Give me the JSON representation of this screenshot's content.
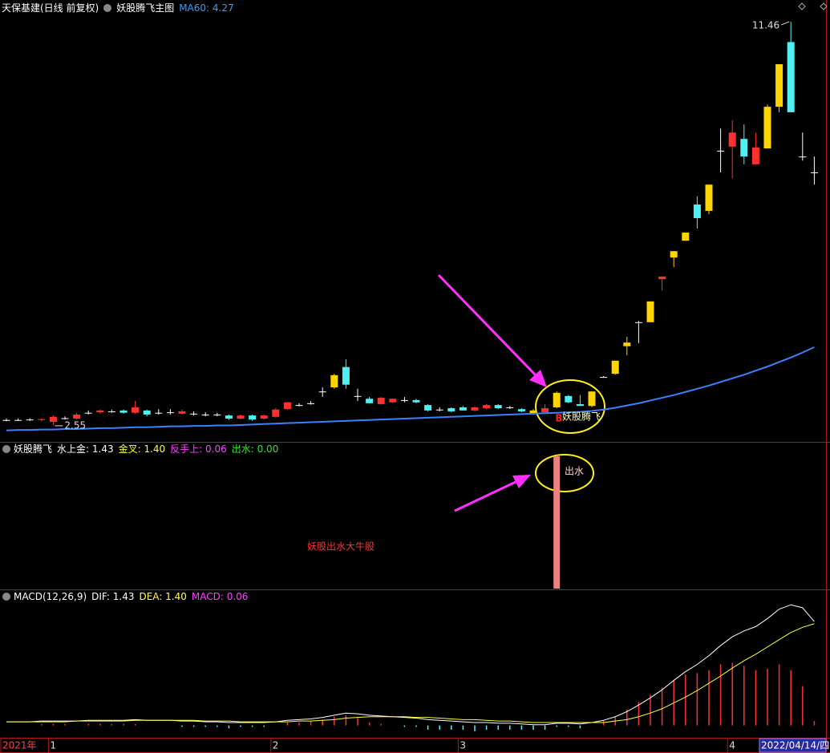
{
  "chart_data": [
    {
      "type": "candlestick",
      "title": "天保基建(日线 前复权)",
      "subtitle": "妖股腾飞主图",
      "legend": "MA60: 4.27",
      "cursor_date": "2022/04/14/四",
      "categories": [
        "2021年",
        null,
        null,
        null,
        "1",
        null,
        null,
        null,
        null,
        null,
        null,
        null,
        null,
        null,
        null,
        null,
        null,
        null,
        null,
        null,
        null,
        null,
        null,
        "2",
        null,
        null,
        null,
        null,
        null,
        null,
        null,
        null,
        null,
        null,
        null,
        null,
        null,
        null,
        null,
        "3",
        null,
        null,
        null,
        null,
        null,
        null,
        null,
        null,
        null,
        null,
        null,
        null,
        null,
        null,
        null,
        null,
        null,
        null,
        null,
        null,
        null,
        null,
        "4",
        null,
        null,
        null,
        null,
        null,
        null,
        null
      ],
      "open": [
        2.66,
        2.66,
        2.67,
        2.66,
        2.62,
        2.7,
        2.69,
        2.82,
        2.83,
        2.85,
        2.87,
        2.82,
        2.87,
        2.82,
        2.83,
        2.8,
        2.8,
        2.78,
        2.78,
        2.76,
        2.69,
        2.76,
        2.69,
        2.73,
        2.9,
        2.99,
        3.03,
        3.29,
        3.38,
        3.83,
        3.19,
        3.13,
        3.01,
        3.05,
        3.1,
        3.1,
        2.99,
        2.89,
        2.92,
        2.94,
        2.87,
        2.92,
        2.99,
        2.94,
        2.9,
        2.8,
        2.83,
        2.94,
        3.19,
        3.01,
        2.97,
        3.61,
        3.68,
        4.29,
        4.82,
        4.82,
        5.77,
        6.25,
        6.62,
        7.42,
        7.28,
        8.61,
        8.7,
        8.87,
        8.31,
        8.66,
        9.58,
        11.01,
        8.48,
        8.13
      ],
      "high": [
        2.69,
        2.69,
        2.7,
        2.69,
        2.76,
        2.74,
        2.82,
        2.87,
        2.89,
        2.89,
        2.89,
        3.08,
        2.89,
        2.9,
        2.9,
        2.89,
        2.85,
        2.83,
        2.82,
        2.78,
        2.78,
        2.78,
        2.78,
        2.92,
        3.06,
        3.03,
        3.08,
        3.38,
        3.68,
        4.0,
        3.35,
        3.17,
        3.17,
        3.13,
        3.17,
        3.13,
        3.01,
        2.94,
        2.94,
        2.97,
        2.96,
        3.01,
        3.01,
        2.97,
        2.92,
        2.9,
        3.01,
        3.29,
        3.21,
        3.21,
        3.29,
        3.63,
        3.97,
        4.5,
        4.85,
        5.28,
        5.83,
        6.39,
        6.8,
        7.6,
        7.86,
        9.1,
        9.28,
        9.19,
        9.01,
        9.63,
        10.52,
        11.46,
        9.01,
        8.48
      ],
      "low": [
        2.63,
        2.64,
        2.64,
        2.63,
        2.55,
        2.67,
        2.67,
        2.78,
        2.8,
        2.82,
        2.8,
        2.8,
        2.74,
        2.78,
        2.78,
        2.78,
        2.76,
        2.74,
        2.74,
        2.66,
        2.67,
        2.64,
        2.67,
        2.71,
        2.89,
        2.96,
        3.0,
        3.17,
        3.35,
        3.35,
        3.08,
        3.03,
        3.0,
        3.03,
        3.05,
        3.03,
        2.85,
        2.85,
        2.83,
        2.87,
        2.85,
        2.9,
        2.9,
        2.9,
        2.83,
        2.78,
        2.8,
        2.92,
        3.03,
        2.97,
        2.94,
        3.61,
        3.66,
        4.09,
        4.36,
        4.82,
        5.52,
        6.04,
        6.62,
        6.89,
        7.21,
        8.13,
        8.0,
        8.31,
        8.31,
        8.66,
        9.46,
        9.46,
        8.39,
        7.86
      ],
      "close": [
        2.66,
        2.66,
        2.67,
        2.68,
        2.73,
        2.7,
        2.78,
        2.82,
        2.87,
        2.85,
        2.82,
        2.94,
        2.78,
        2.82,
        2.83,
        2.85,
        2.8,
        2.78,
        2.78,
        2.69,
        2.76,
        2.67,
        2.76,
        2.89,
        3.05,
        2.99,
        3.03,
        3.29,
        3.65,
        3.44,
        3.19,
        3.03,
        3.15,
        3.13,
        3.1,
        3.05,
        2.87,
        2.89,
        2.85,
        2.87,
        2.94,
        2.99,
        2.92,
        2.94,
        2.85,
        2.87,
        2.92,
        3.26,
        3.05,
        2.97,
        3.29,
        3.61,
        3.97,
        4.37,
        4.82,
        5.28,
        5.83,
        6.39,
        6.8,
        7.12,
        7.86,
        8.61,
        9.01,
        8.48,
        8.68,
        9.58,
        10.52,
        9.46,
        8.48,
        8.13
      ],
      "candle_colors": [
        "#ffffff",
        "#ffffff",
        "#ffffff",
        "#ff3030",
        "#ff3030",
        "#ffffff",
        "#ff3030",
        "#ffffff",
        "#ff3030",
        "#ffffff",
        "#50f0f0",
        "#ff3030",
        "#50f0f0",
        "#ffffff",
        "#ffffff",
        "#ff3030",
        "#ffffff",
        "#ffffff",
        "#ffffff",
        "#50f0f0",
        "#ff3030",
        "#50f0f0",
        "#ff3030",
        "#ff3030",
        "#ff3030",
        "#ffffff",
        "#ffffff",
        "#ffffff",
        "#ffd400",
        "#50f0f0",
        "#ffffff",
        "#50f0f0",
        "#ff3030",
        "#ff3030",
        "#ffffff",
        "#50f0f0",
        "#50f0f0",
        "#ffffff",
        "#50f0f0",
        "#50f0f0",
        "#ff3030",
        "#ff3030",
        "#50f0f0",
        "#ffffff",
        "#50f0f0",
        "#ffd400",
        "#ff3030",
        "#ffd400",
        "#50f0f0",
        "#50f0f0",
        "#ffd400",
        "#ffffff",
        "#ffd400",
        "#ffd400",
        "#ffffff",
        "#ffd400",
        "#ff3030",
        "#ffd400",
        "#ffd400",
        "#50f0f0",
        "#ffd400",
        "#ffffff",
        "#ff3030",
        "#50f0f0",
        "#ff3030",
        "#ffd400",
        "#ffd400",
        "#50f0f0",
        "#ffffff",
        "#ffffff"
      ],
      "ma": {
        "name": "MA60",
        "color": "#3a80ff",
        "values": [
          2.43,
          2.44,
          2.44,
          2.45,
          2.45,
          2.46,
          2.46,
          2.47,
          2.48,
          2.48,
          2.49,
          2.5,
          2.5,
          2.51,
          2.52,
          2.52,
          2.53,
          2.53,
          2.54,
          2.54,
          2.55,
          2.56,
          2.57,
          2.58,
          2.59,
          2.6,
          2.61,
          2.62,
          2.63,
          2.64,
          2.65,
          2.66,
          2.67,
          2.68,
          2.69,
          2.7,
          2.71,
          2.72,
          2.73,
          2.74,
          2.75,
          2.76,
          2.77,
          2.78,
          2.79,
          2.8,
          2.81,
          2.82,
          2.83,
          2.84,
          2.86,
          2.89,
          2.93,
          2.98,
          3.03,
          3.09,
          3.15,
          3.21,
          3.28,
          3.35,
          3.42,
          3.5,
          3.58,
          3.66,
          3.75,
          3.84,
          3.94,
          4.04,
          4.15,
          4.27
        ]
      },
      "ylim": [
        2.23,
        11.62
      ],
      "annotations": [
        "B",
        "妖股腾飞"
      ]
    },
    {
      "type": "bar",
      "title": "妖股腾飞",
      "readouts": [
        {
          "text": "水上金: 1.43",
          "color": "#ffffff"
        },
        {
          "text": "金叉: 1.40",
          "color": "#ffff40"
        },
        {
          "text": "反手上: 0.06",
          "color": "#ff40ff"
        },
        {
          "text": "出水: 0.00",
          "color": "#30e030"
        }
      ],
      "values": [
        0,
        0,
        0,
        0,
        0,
        0,
        0,
        0,
        0,
        0,
        0,
        0,
        0,
        0,
        0,
        0,
        0,
        0,
        0,
        0,
        0,
        0,
        0,
        0,
        0,
        0,
        0,
        0,
        0,
        0,
        0,
        0,
        0,
        0,
        0,
        0,
        0,
        0,
        0,
        0,
        0,
        0,
        0,
        0,
        0,
        0,
        0,
        1,
        0,
        0,
        0,
        0,
        0,
        0,
        0,
        0,
        0,
        0,
        0,
        0,
        0,
        0,
        0,
        0,
        0,
        0,
        0,
        0,
        0,
        0
      ],
      "color": "#f08080",
      "ylim": [
        0,
        1
      ],
      "annotations": [
        "出水",
        "妖股出水大牛股"
      ]
    },
    {
      "type": "macd",
      "title": "MACD(12,26,9)",
      "readouts": [
        {
          "text": "DIF: 1.43",
          "color": "#ffffff"
        },
        {
          "text": "DEA: 1.40",
          "color": "#ffff40"
        },
        {
          "text": "MACD: 0.06",
          "color": "#ff40ff"
        }
      ],
      "series": [
        {
          "name": "DIF",
          "color": "#ffffff",
          "values": [
            0.05,
            0.05,
            0.05,
            0.06,
            0.06,
            0.06,
            0.06,
            0.07,
            0.07,
            0.07,
            0.07,
            0.08,
            0.07,
            0.07,
            0.07,
            0.06,
            0.06,
            0.05,
            0.05,
            0.04,
            0.04,
            0.04,
            0.04,
            0.05,
            0.07,
            0.08,
            0.09,
            0.11,
            0.14,
            0.17,
            0.16,
            0.14,
            0.13,
            0.12,
            0.11,
            0.1,
            0.08,
            0.07,
            0.06,
            0.05,
            0.04,
            0.04,
            0.03,
            0.03,
            0.02,
            0.01,
            0.01,
            0.03,
            0.03,
            0.02,
            0.04,
            0.07,
            0.12,
            0.19,
            0.28,
            0.38,
            0.49,
            0.62,
            0.74,
            0.84,
            0.96,
            1.1,
            1.22,
            1.3,
            1.36,
            1.47,
            1.6,
            1.66,
            1.62,
            1.43
          ]
        },
        {
          "name": "DEA",
          "color": "#ffff40",
          "values": [
            0.05,
            0.05,
            0.05,
            0.05,
            0.05,
            0.05,
            0.06,
            0.06,
            0.06,
            0.06,
            0.06,
            0.07,
            0.07,
            0.07,
            0.07,
            0.07,
            0.07,
            0.06,
            0.06,
            0.06,
            0.05,
            0.05,
            0.05,
            0.05,
            0.05,
            0.06,
            0.06,
            0.07,
            0.08,
            0.1,
            0.11,
            0.12,
            0.12,
            0.12,
            0.12,
            0.11,
            0.11,
            0.1,
            0.09,
            0.08,
            0.08,
            0.07,
            0.06,
            0.06,
            0.05,
            0.04,
            0.04,
            0.04,
            0.04,
            0.04,
            0.04,
            0.04,
            0.06,
            0.08,
            0.12,
            0.17,
            0.23,
            0.31,
            0.39,
            0.48,
            0.58,
            0.68,
            0.79,
            0.89,
            0.98,
            1.08,
            1.18,
            1.28,
            1.35,
            1.4
          ]
        }
      ],
      "histogram": {
        "name": "MACD",
        "up_color": "#ff3030",
        "down_color": "#50f0f0",
        "values": [
          0,
          0,
          0,
          0.02,
          0.02,
          0.02,
          0,
          0.02,
          0.02,
          0.02,
          0.02,
          0.02,
          0,
          0,
          0,
          -0.02,
          -0.02,
          -0.02,
          -0.02,
          -0.04,
          -0.02,
          -0.02,
          -0.02,
          0,
          0.04,
          0.04,
          0.06,
          0.08,
          0.12,
          0.14,
          0.1,
          0.04,
          0.02,
          0,
          -0.02,
          -0.02,
          -0.06,
          -0.06,
          -0.06,
          -0.06,
          -0.08,
          -0.06,
          -0.06,
          -0.06,
          -0.06,
          -0.06,
          -0.06,
          -0.02,
          -0.02,
          -0.04,
          0,
          0.06,
          0.12,
          0.22,
          0.32,
          0.42,
          0.52,
          0.62,
          0.7,
          0.72,
          0.76,
          0.84,
          0.86,
          0.82,
          0.76,
          0.78,
          0.84,
          0.76,
          0.54,
          0.06
        ]
      },
      "ylim": [
        -0.17,
        1.85
      ]
    }
  ]
}
